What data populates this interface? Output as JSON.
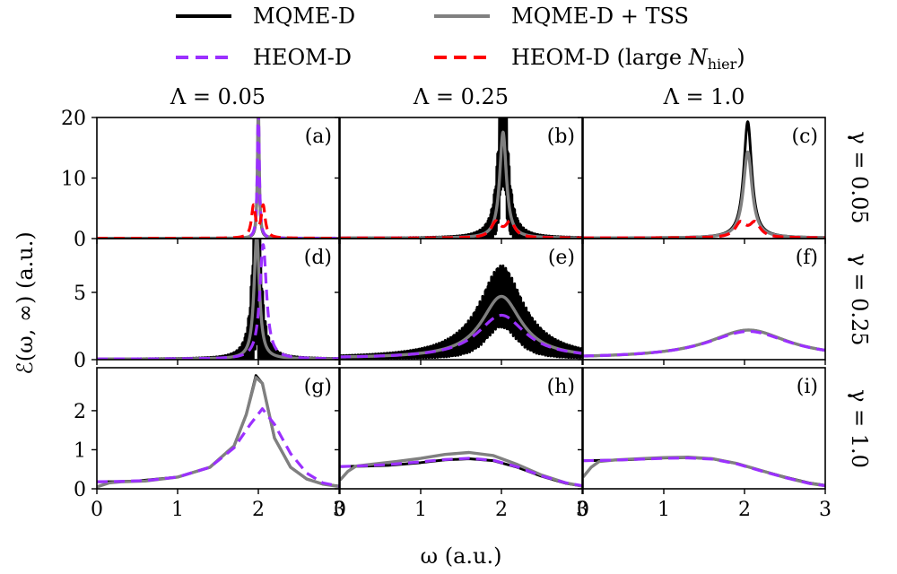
{
  "chart_data": {
    "type": "line",
    "title": "",
    "xlabel": "ω (a.u.)",
    "ylabel": "ℰ(ω, ∞) (a.u.)",
    "xlim": [
      0,
      3
    ],
    "grid": false,
    "legend_placement": "top",
    "legend": [
      {
        "key": "mqme",
        "label": "MQME-D",
        "color": "#000000",
        "dash": "solid"
      },
      {
        "key": "tss",
        "label": "MQME-D + TSS",
        "color": "#808080",
        "dash": "solid"
      },
      {
        "key": "heom",
        "label": "HEOM-D",
        "color": "#9b30ff",
        "dash": "dashed"
      },
      {
        "key": "heom_large",
        "label": "HEOM-D (large N_hier)",
        "label_main": "HEOM-D (large ",
        "label_italic": "N",
        "label_sub": "hier",
        "label_close": ")",
        "color": "#ff0000",
        "dash": "dashed"
      }
    ],
    "columns": [
      "Λ = 0.05",
      "Λ = 0.25",
      "Λ = 1.0"
    ],
    "rows": [
      "γ = 0.05",
      "γ = 0.25",
      "γ = 1.0"
    ],
    "x_ticks": [
      0,
      1,
      2,
      3
    ],
    "row_ylims": [
      [
        0,
        20
      ],
      [
        0,
        9
      ],
      [
        0,
        3.1
      ]
    ],
    "row_yticks": [
      [
        0,
        10,
        20
      ],
      [
        0,
        5
      ],
      [
        0,
        1,
        2
      ]
    ],
    "panels": [
      {
        "label": "(a)",
        "row": 0,
        "col": 0,
        "series": {
          "mqme": {
            "type": "lorentz",
            "x0": 2.0,
            "h": 22,
            "w": 0.012,
            "base": 0.05,
            "osc": 0
          },
          "tss": {
            "type": "lorentz",
            "x0": 2.0,
            "h": 22,
            "w": 0.013,
            "base": 0.05,
            "osc": 0
          },
          "heom": {
            "type": "lorentz",
            "x0": 2.0,
            "h": 22,
            "w": 0.014,
            "base": 0.05,
            "osc": 0
          },
          "heom_large": {
            "type": "double",
            "x0": 2.0,
            "h": 9.5,
            "w": 0.03,
            "split": 0.12,
            "base": 0.05
          }
        }
      },
      {
        "label": "(b)",
        "row": 0,
        "col": 1,
        "series": {
          "mqme": {
            "type": "lorentz",
            "x0": 2.02,
            "h": 22,
            "w": 0.05,
            "base": 0.08,
            "osc": 12
          },
          "tss": {
            "type": "lorentz",
            "x0": 2.02,
            "h": 17.5,
            "w": 0.05,
            "base": 0.08,
            "osc": 0
          },
          "heom": {
            "type": "double",
            "x0": 2.02,
            "h": 4.6,
            "w": 0.07,
            "split": 0.18,
            "base": 0.08
          },
          "heom_large": {
            "type": "double",
            "x0": 2.02,
            "h": 4.6,
            "w": 0.07,
            "split": 0.18,
            "base": 0.08
          }
        }
      },
      {
        "label": "(c)",
        "row": 0,
        "col": 2,
        "series": {
          "mqme": {
            "type": "lorentz",
            "x0": 2.04,
            "h": 19.2,
            "w": 0.06,
            "base": 0.1,
            "osc": 0
          },
          "tss": {
            "type": "lorentz",
            "x0": 2.04,
            "h": 14.2,
            "w": 0.065,
            "base": 0.1,
            "osc": 0
          },
          "heom": {
            "type": "double",
            "x0": 2.04,
            "h": 4.3,
            "w": 0.08,
            "split": 0.18,
            "base": 0.1
          },
          "heom_large": {
            "type": "double",
            "x0": 2.04,
            "h": 4.3,
            "w": 0.08,
            "split": 0.18,
            "base": 0.1
          }
        }
      },
      {
        "label": "(d)",
        "row": 1,
        "col": 0,
        "series": {
          "mqme": {
            "type": "lorentz",
            "x0": 1.98,
            "h": 9.2,
            "w": 0.04,
            "base": 0.05,
            "osc": 8.0
          },
          "tss": {
            "type": "lorentz",
            "x0": 1.98,
            "h": 9.2,
            "w": 0.04,
            "base": 0.05,
            "osc": 0
          },
          "heom": {
            "type": "lorentz",
            "x0": 2.06,
            "h": 8.5,
            "w": 0.05,
            "base": 0.05,
            "osc": 0
          }
        }
      },
      {
        "label": "(e)",
        "row": 1,
        "col": 1,
        "series": {
          "mqme": {
            "type": "lorentz",
            "x0": 2.0,
            "h": 4.6,
            "w": 0.3,
            "base": 0.1,
            "osc": 2.3
          },
          "tss": {
            "type": "lorentz",
            "x0": 2.0,
            "h": 4.6,
            "w": 0.3,
            "base": 0.1,
            "osc": 0
          },
          "heom": {
            "type": "lorentz",
            "x0": 2.0,
            "h": 3.2,
            "w": 0.36,
            "base": 0.1,
            "osc": 0
          }
        }
      },
      {
        "label": "(f)",
        "row": 1,
        "col": 2,
        "series": {
          "mqme": {
            "type": "lorentz",
            "x0": 2.05,
            "h": 2.1,
            "w": 0.6,
            "base": 0.1,
            "osc": 0
          },
          "tss": {
            "type": "lorentz",
            "x0": 2.05,
            "h": 2.1,
            "w": 0.6,
            "base": 0.1,
            "osc": 0
          },
          "heom": {
            "type": "lorentz",
            "x0": 2.05,
            "h": 2.0,
            "w": 0.62,
            "base": 0.1,
            "osc": 0
          }
        }
      },
      {
        "label": "(g)",
        "row": 2,
        "col": 0,
        "series": {
          "mqme": {
            "type": "points",
            "x": [
              0,
              0.2,
              0.5,
              1.0,
              1.4,
              1.7,
              1.85,
              1.97,
              2.05,
              2.2,
              2.4,
              2.6,
              2.8,
              3.0
            ],
            "y": [
              0.18,
              0.18,
              0.2,
              0.3,
              0.55,
              1.1,
              1.9,
              2.9,
              2.7,
              1.3,
              0.55,
              0.25,
              0.12,
              0.07
            ]
          },
          "tss": {
            "type": "points",
            "x": [
              0,
              0.15,
              0.3,
              0.6,
              1.0,
              1.4,
              1.7,
              1.85,
              1.97,
              2.05,
              2.2,
              2.4,
              2.6,
              2.8,
              3.0
            ],
            "y": [
              0.05,
              0.15,
              0.18,
              0.2,
              0.3,
              0.55,
              1.1,
              1.9,
              2.85,
              2.7,
              1.3,
              0.55,
              0.25,
              0.12,
              0.06
            ]
          },
          "heom": {
            "type": "points",
            "x": [
              0,
              0.3,
              0.6,
              1.0,
              1.4,
              1.7,
              1.9,
              2.05,
              2.2,
              2.4,
              2.6,
              2.8,
              3.0
            ],
            "y": [
              0.18,
              0.19,
              0.21,
              0.3,
              0.55,
              1.05,
              1.65,
              2.05,
              1.65,
              0.9,
              0.4,
              0.15,
              0.07
            ]
          }
        }
      },
      {
        "label": "(h)",
        "row": 2,
        "col": 1,
        "series": {
          "mqme": {
            "type": "points",
            "x": [
              0,
              0.3,
              0.6,
              1.0,
              1.3,
              1.6,
              1.9,
              2.2,
              2.5,
              2.8,
              3.0
            ],
            "y": [
              0.57,
              0.58,
              0.6,
              0.67,
              0.74,
              0.77,
              0.72,
              0.55,
              0.32,
              0.14,
              0.07
            ]
          },
          "tss": {
            "type": "points",
            "x": [
              0,
              0.1,
              0.2,
              0.4,
              0.7,
              1.0,
              1.3,
              1.6,
              1.9,
              2.2,
              2.5,
              2.8,
              3.0
            ],
            "y": [
              0.22,
              0.45,
              0.58,
              0.63,
              0.7,
              0.78,
              0.88,
              0.93,
              0.85,
              0.62,
              0.35,
              0.15,
              0.07
            ]
          },
          "heom": {
            "type": "points",
            "x": [
              0,
              0.3,
              0.6,
              1.0,
              1.3,
              1.6,
              1.9,
              2.2,
              2.5,
              2.8,
              3.0
            ],
            "y": [
              0.57,
              0.59,
              0.62,
              0.69,
              0.75,
              0.78,
              0.73,
              0.56,
              0.33,
              0.15,
              0.08
            ]
          }
        }
      },
      {
        "label": "(i)",
        "row": 2,
        "col": 2,
        "series": {
          "mqme": {
            "type": "points",
            "x": [
              0,
              0.3,
              0.6,
              1.0,
              1.3,
              1.6,
              1.9,
              2.2,
              2.5,
              2.8,
              3.0
            ],
            "y": [
              0.72,
              0.73,
              0.75,
              0.79,
              0.8,
              0.77,
              0.65,
              0.47,
              0.3,
              0.15,
              0.09
            ]
          },
          "tss": {
            "type": "points",
            "x": [
              0,
              0.1,
              0.2,
              0.4,
              0.7,
              1.0,
              1.3,
              1.6,
              1.9,
              2.2,
              2.5,
              2.8,
              3.0
            ],
            "y": [
              0.3,
              0.55,
              0.7,
              0.74,
              0.77,
              0.8,
              0.81,
              0.77,
              0.65,
              0.47,
              0.29,
              0.14,
              0.08
            ]
          },
          "heom": {
            "type": "points",
            "x": [
              0,
              0.3,
              0.6,
              1.0,
              1.3,
              1.6,
              1.9,
              2.2,
              2.5,
              2.8,
              3.0
            ],
            "y": [
              0.72,
              0.73,
              0.75,
              0.78,
              0.79,
              0.76,
              0.64,
              0.46,
              0.29,
              0.14,
              0.08
            ]
          }
        }
      }
    ]
  }
}
